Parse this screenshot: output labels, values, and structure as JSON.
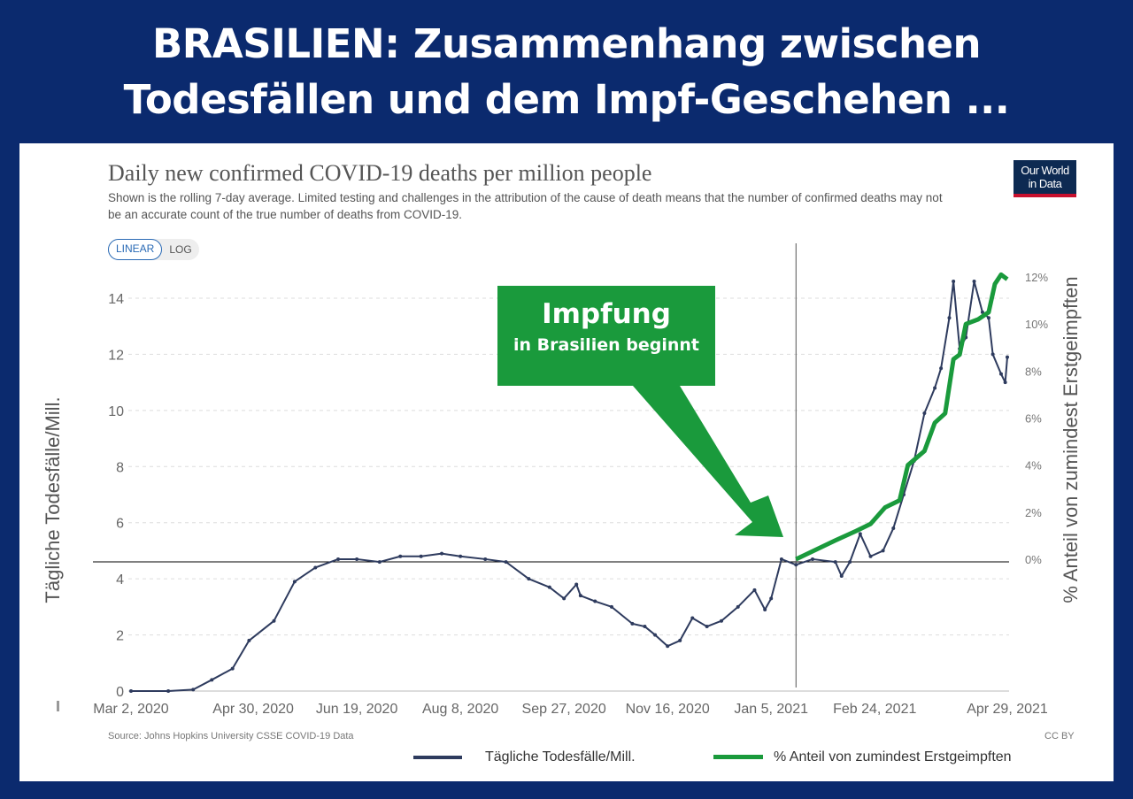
{
  "headline": {
    "line1": "BRASILIEN: Zusammenhang zwischen",
    "line2": "Todesfällen und dem Impf-Geschehen ..."
  },
  "logo": {
    "line1": "Our World",
    "line2": "in Data"
  },
  "toggle": {
    "linear": "LINEAR",
    "log": "LOG",
    "selected": "LINEAR"
  },
  "source": "Source: Johns Hopkins University CSSE COVID-19 Data",
  "license": "CC BY",
  "annotation": {
    "title": "Impfung",
    "subtitle": "in Brasilien beginnt",
    "color": "#1a9a3c"
  },
  "chart_data": {
    "type": "line",
    "title": "Daily new confirmed COVID-19 deaths per million people",
    "subtitle": "Shown is the rolling 7-day average. Limited testing and challenges in the attribution of the cause of death means that the number of confirmed deaths may not be an accurate count of the true number of deaths from COVID-19.",
    "ylabel": "Tägliche Todesfälle/Mill.",
    "ylabel_right": "% Anteil von zumindest Erstgeimpften",
    "ylim": [
      0,
      14
    ],
    "ylim_right": [
      0,
      12
    ],
    "yticks": [
      "0",
      "2",
      "4",
      "6",
      "8",
      "10",
      "12",
      "14"
    ],
    "yticks_right": [
      "0%",
      "2%",
      "4%",
      "6%",
      "8%",
      "10%",
      "12%"
    ],
    "xticks": [
      "Mar 2, 2020",
      "Apr 30, 2020",
      "Jun 19, 2020",
      "Aug 8, 2020",
      "Sep 27, 2020",
      "Nov 16, 2020",
      "Jan 5, 2021",
      "Feb 24, 2021",
      "Apr 29, 2021"
    ],
    "xtick_dates": [
      "2020-03-02",
      "2020-04-30",
      "2020-06-19",
      "2020-08-08",
      "2020-09-27",
      "2020-11-16",
      "2021-01-05",
      "2021-02-24",
      "2021-04-29"
    ],
    "xlim": [
      "2020-03-02",
      "2021-04-29"
    ],
    "grid": true,
    "legend_position": "bottom",
    "vaccination_start_marker": "2021-01-17",
    "series": [
      {
        "name": "Tägliche Todesfälle/Mill.",
        "color": "#2e3b5e",
        "axis": "left",
        "x": [
          "2020-03-02",
          "2020-03-20",
          "2020-04-01",
          "2020-04-10",
          "2020-04-20",
          "2020-04-28",
          "2020-05-10",
          "2020-05-20",
          "2020-05-30",
          "2020-06-10",
          "2020-06-19",
          "2020-06-30",
          "2020-07-10",
          "2020-07-20",
          "2020-07-30",
          "2020-08-08",
          "2020-08-20",
          "2020-08-30",
          "2020-09-10",
          "2020-09-20",
          "2020-09-27",
          "2020-10-03",
          "2020-10-05",
          "2020-10-12",
          "2020-10-20",
          "2020-10-30",
          "2020-11-05",
          "2020-11-10",
          "2020-11-16",
          "2020-11-22",
          "2020-11-28",
          "2020-12-05",
          "2020-12-12",
          "2020-12-20",
          "2020-12-28",
          "2021-01-02",
          "2021-01-05",
          "2021-01-10",
          "2021-01-17",
          "2021-01-25",
          "2021-02-05",
          "2021-02-08",
          "2021-02-12",
          "2021-02-17",
          "2021-02-22",
          "2021-02-28",
          "2021-03-05",
          "2021-03-10",
          "2021-03-15",
          "2021-03-20",
          "2021-03-25",
          "2021-03-28",
          "2021-04-01",
          "2021-04-03",
          "2021-04-06",
          "2021-04-09",
          "2021-04-13",
          "2021-04-17",
          "2021-04-20",
          "2021-04-22",
          "2021-04-26",
          "2021-04-28",
          "2021-04-29"
        ],
        "values": [
          0,
          0,
          0.05,
          0.4,
          0.8,
          1.8,
          2.5,
          3.9,
          4.4,
          4.7,
          4.7,
          4.6,
          4.8,
          4.8,
          4.9,
          4.8,
          4.7,
          4.6,
          4.0,
          3.7,
          3.3,
          3.8,
          3.4,
          3.2,
          3.0,
          2.4,
          2.3,
          2.0,
          1.6,
          1.8,
          2.6,
          2.3,
          2.5,
          3.0,
          3.6,
          2.9,
          3.3,
          4.7,
          4.5,
          4.7,
          4.6,
          4.1,
          4.6,
          5.6,
          4.8,
          5.0,
          5.8,
          7.0,
          8.2,
          9.9,
          10.8,
          11.5,
          13.3,
          14.6,
          12.2,
          12.6,
          14.6,
          13.5,
          13.3,
          12.0,
          11.3,
          11.0,
          11.9
        ]
      },
      {
        "name": "% Anteil von zumindest Erstgeimpften",
        "color": "#1a9a3c",
        "axis": "right",
        "x": [
          "2021-01-17",
          "2021-02-05",
          "2021-02-15",
          "2021-02-22",
          "2021-03-01",
          "2021-03-08",
          "2021-03-12",
          "2021-03-20",
          "2021-03-25",
          "2021-03-30",
          "2021-04-03",
          "2021-04-06",
          "2021-04-09",
          "2021-04-15",
          "2021-04-20",
          "2021-04-23",
          "2021-04-26",
          "2021-04-29"
        ],
        "values": [
          0,
          0.8,
          1.2,
          1.5,
          2.2,
          2.5,
          4.0,
          4.6,
          5.8,
          6.2,
          8.5,
          8.7,
          10.0,
          10.2,
          10.5,
          11.7,
          12.1,
          11.9
        ]
      }
    ]
  }
}
